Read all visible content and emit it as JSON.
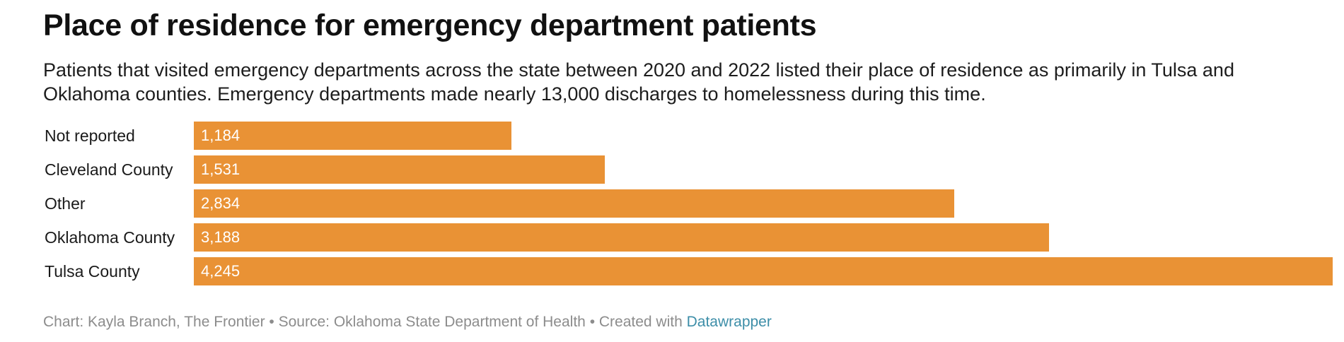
{
  "chart_data": {
    "type": "bar",
    "orientation": "horizontal",
    "title": "Place of residence for emergency department patients",
    "subtitle": "Patients that visited emergency departments across the state between 2020 and 2022 listed their place of residence as primarily in Tulsa and Oklahoma counties. Emergency departments made nearly 13,000 discharges to homelessness during this time.",
    "categories": [
      "Not reported",
      "Cleveland County",
      "Other",
      "Oklahoma County",
      "Tulsa County"
    ],
    "values": [
      1184,
      1531,
      2834,
      3188,
      4245
    ],
    "value_labels": [
      "1,184",
      "1,531",
      "2,834",
      "3,188",
      "4,245"
    ],
    "xlim": [
      0,
      4245
    ],
    "grid": false,
    "legend": "none",
    "bar_color": "#e99235",
    "value_label_color": "#ffffff"
  },
  "footer": {
    "credit": "Chart: Kayla Branch, The Frontier",
    "separator": " • ",
    "source": "Source: Oklahoma State Department of Health",
    "created": "Created with ",
    "tool": "Datawrapper"
  }
}
